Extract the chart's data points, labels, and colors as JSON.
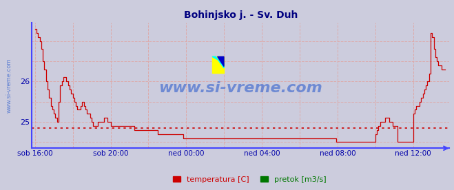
{
  "title": "Bohinjsko j. - Sv. Duh",
  "title_color": "#000080",
  "bg_color": "#ccccdd",
  "plot_bg_color": "#ccccdd",
  "axis_color": "#4444ff",
  "grid_color": "#ddaaaa",
  "yticks": [
    25,
    26
  ],
  "ylabel_color": "#0000aa",
  "xlabel_color": "#0000aa",
  "xtick_labels": [
    "sob 16:00",
    "sob 20:00",
    "ned 00:00",
    "ned 04:00",
    "ned 08:00",
    "ned 12:00"
  ],
  "xtick_positions": [
    0,
    48,
    96,
    144,
    192,
    240
  ],
  "avg_line_y": 24.85,
  "avg_line_color": "#cc0000",
  "ylim": [
    24.35,
    27.45
  ],
  "xlim": [
    -2,
    263
  ],
  "watermark": "www.si-vreme.com",
  "watermark_color": "#2255cc",
  "legend_temp_color": "#cc0000",
  "legend_flow_color": "#007700",
  "figsize": [
    6.59,
    2.76
  ],
  "dpi": 100,
  "temp_data_x": [
    0,
    1,
    2,
    3,
    4,
    5,
    6,
    7,
    8,
    9,
    10,
    11,
    12,
    13,
    14,
    15,
    16,
    17,
    18,
    19,
    20,
    21,
    22,
    23,
    24,
    25,
    26,
    27,
    28,
    29,
    30,
    31,
    32,
    33,
    34,
    35,
    36,
    37,
    38,
    39,
    40,
    41,
    42,
    43,
    44,
    45,
    46,
    47,
    48,
    49,
    50,
    51,
    52,
    53,
    54,
    55,
    56,
    57,
    58,
    59,
    60,
    61,
    62,
    63,
    64,
    65,
    66,
    67,
    68,
    69,
    70,
    71,
    72,
    73,
    74,
    75,
    76,
    77,
    78,
    79,
    80,
    81,
    82,
    83,
    84,
    85,
    86,
    87,
    88,
    89,
    90,
    91,
    92,
    93,
    94,
    95,
    96,
    97,
    98,
    99,
    100,
    101,
    102,
    103,
    104,
    105,
    106,
    107,
    108,
    109,
    110,
    111,
    112,
    113,
    114,
    115,
    116,
    117,
    118,
    119,
    120,
    121,
    122,
    123,
    124,
    125,
    126,
    127,
    128,
    129,
    130,
    131,
    132,
    133,
    134,
    135,
    136,
    137,
    138,
    139,
    140,
    141,
    142,
    143,
    144,
    145,
    146,
    147,
    148,
    149,
    150,
    151,
    152,
    153,
    154,
    155,
    156,
    157,
    158,
    159,
    160,
    161,
    162,
    163,
    164,
    165,
    166,
    167,
    168,
    169,
    170,
    171,
    172,
    173,
    174,
    175,
    176,
    177,
    178,
    179,
    180,
    181,
    182,
    183,
    184,
    185,
    186,
    187,
    188,
    189,
    190,
    191,
    192,
    193,
    194,
    195,
    196,
    197,
    198,
    199,
    200,
    201,
    202,
    203,
    204,
    205,
    206,
    207,
    208,
    209,
    210,
    211,
    212,
    213,
    214,
    215,
    216,
    217,
    218,
    219,
    220,
    221,
    222,
    223,
    224,
    225,
    226,
    227,
    228,
    229,
    230,
    231,
    232,
    233,
    234,
    235,
    236,
    237,
    238,
    239,
    240,
    241,
    242,
    243,
    244,
    245,
    246,
    247,
    248,
    249,
    250,
    251,
    252,
    253,
    254,
    255,
    256,
    257,
    258,
    259,
    260
  ],
  "temp_data_y": [
    27.3,
    27.2,
    27.1,
    27.0,
    26.8,
    26.5,
    26.3,
    26.0,
    25.8,
    25.6,
    25.4,
    25.3,
    25.2,
    25.1,
    25.0,
    25.5,
    25.9,
    26.0,
    26.1,
    26.1,
    26.0,
    25.9,
    25.8,
    25.7,
    25.6,
    25.5,
    25.4,
    25.3,
    25.3,
    25.4,
    25.5,
    25.4,
    25.3,
    25.2,
    25.2,
    25.1,
    25.0,
    24.9,
    24.9,
    24.9,
    25.0,
    25.0,
    25.0,
    25.0,
    25.1,
    25.1,
    25.0,
    25.0,
    24.9,
    24.9,
    24.9,
    24.9,
    24.9,
    24.9,
    24.9,
    24.9,
    24.9,
    24.9,
    24.9,
    24.9,
    24.9,
    24.9,
    24.9,
    24.8,
    24.8,
    24.8,
    24.8,
    24.8,
    24.8,
    24.8,
    24.8,
    24.8,
    24.8,
    24.8,
    24.8,
    24.8,
    24.8,
    24.8,
    24.7,
    24.7,
    24.7,
    24.7,
    24.7,
    24.7,
    24.7,
    24.7,
    24.7,
    24.7,
    24.7,
    24.7,
    24.7,
    24.7,
    24.7,
    24.7,
    24.6,
    24.6,
    24.6,
    24.6,
    24.6,
    24.6,
    24.6,
    24.6,
    24.6,
    24.6,
    24.6,
    24.6,
    24.6,
    24.6,
    24.6,
    24.6,
    24.6,
    24.6,
    24.6,
    24.6,
    24.6,
    24.6,
    24.6,
    24.6,
    24.6,
    24.6,
    24.6,
    24.6,
    24.6,
    24.6,
    24.6,
    24.6,
    24.6,
    24.6,
    24.6,
    24.6,
    24.6,
    24.6,
    24.6,
    24.6,
    24.6,
    24.6,
    24.6,
    24.6,
    24.6,
    24.6,
    24.6,
    24.6,
    24.6,
    24.6,
    24.6,
    24.6,
    24.6,
    24.6,
    24.6,
    24.6,
    24.6,
    24.6,
    24.6,
    24.6,
    24.6,
    24.6,
    24.6,
    24.6,
    24.6,
    24.6,
    24.6,
    24.6,
    24.6,
    24.6,
    24.6,
    24.6,
    24.6,
    24.6,
    24.6,
    24.6,
    24.6,
    24.6,
    24.6,
    24.6,
    24.6,
    24.6,
    24.6,
    24.6,
    24.6,
    24.6,
    24.6,
    24.6,
    24.6,
    24.6,
    24.6,
    24.6,
    24.6,
    24.6,
    24.6,
    24.6,
    24.6,
    24.5,
    24.5,
    24.5,
    24.5,
    24.5,
    24.5,
    24.5,
    24.5,
    24.5,
    24.5,
    24.5,
    24.5,
    24.5,
    24.5,
    24.5,
    24.5,
    24.5,
    24.5,
    24.5,
    24.5,
    24.5,
    24.5,
    24.5,
    24.5,
    24.5,
    24.7,
    24.8,
    24.9,
    25.0,
    25.0,
    25.0,
    25.1,
    25.1,
    25.1,
    25.0,
    25.0,
    24.9,
    24.9,
    24.9,
    24.5,
    24.5,
    24.5,
    24.5,
    24.5,
    24.5,
    24.5,
    24.5,
    24.5,
    24.5,
    25.2,
    25.3,
    25.4,
    25.4,
    25.5,
    25.6,
    25.7,
    25.8,
    25.9,
    26.0,
    26.2,
    27.2,
    27.1,
    26.8,
    26.6,
    26.5,
    26.4,
    26.4,
    26.3,
    26.3,
    26.3
  ]
}
